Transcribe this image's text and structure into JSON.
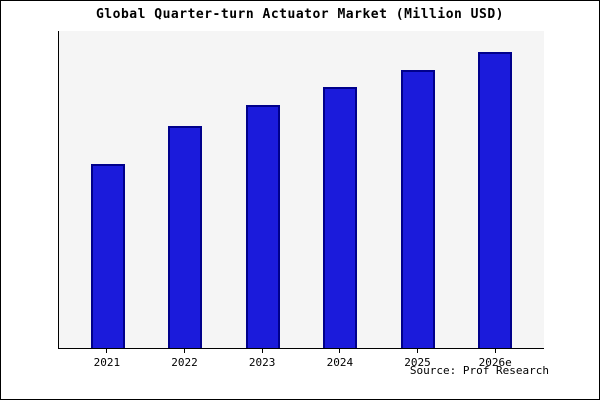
{
  "title": "Global Quarter-turn Actuator Market (Million USD)",
  "source": "Source: Prof Research",
  "colors": {
    "bar_fill": "#1b1bdb",
    "bar_border": "#00008b",
    "plot_background": "#f5f5f5"
  },
  "chart_data": {
    "type": "bar",
    "title": "Global Quarter-turn Actuator Market (Million USD)",
    "categories": [
      "2021",
      "2022",
      "2023",
      "2024",
      "2025",
      "2026e"
    ],
    "values": [
      62,
      75,
      82,
      88,
      94,
      100
    ],
    "xlabel": "",
    "ylabel": "",
    "ylim": [
      0,
      107
    ],
    "grid": false,
    "legend": "none",
    "annotation": "Source: Prof Research",
    "note": "No y-axis tick labels shown; values are relative estimates with 2026e = 100"
  }
}
